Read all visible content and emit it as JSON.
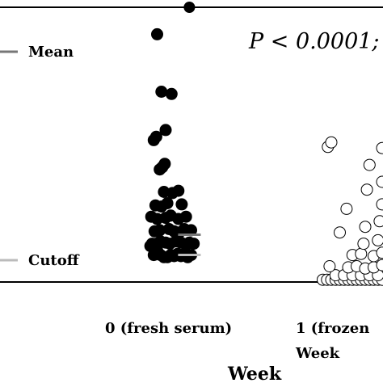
{
  "chart_data": {
    "type": "scatter",
    "annotation": "P < 0.0001;",
    "legend": {
      "placement": "left",
      "mean_label": "Mean",
      "cutoff_label": "Cutoff"
    },
    "categories": [
      "0 (fresh serum)",
      "1 (frozen"
    ],
    "category_sublabels": [
      "",
      "Week"
    ],
    "xlabel": "Week",
    "colors": {
      "fresh": "#000000",
      "frozen": "#ffffff",
      "frame": "#000000",
      "mean": "#777777",
      "cutoff": "#bbbbbb"
    },
    "series": [
      {
        "category_index": 0,
        "fill": "fresh",
        "points": [
          [
            -0.18,
            128
          ],
          [
            -0.14,
            120
          ],
          [
            -0.1,
            124
          ],
          [
            -0.06,
            120
          ],
          [
            -0.02,
            118
          ],
          [
            0.02,
            118
          ],
          [
            0.06,
            120
          ],
          [
            0.1,
            119
          ],
          [
            0.14,
            121
          ],
          [
            0.18,
            119
          ],
          [
            0.22,
            121
          ],
          [
            0.26,
            118
          ],
          [
            0.3,
            120
          ],
          [
            -0.16,
            130
          ],
          [
            -0.11,
            130
          ],
          [
            -0.06,
            132
          ],
          [
            0.0,
            131
          ],
          [
            0.05,
            130
          ],
          [
            0.12,
            132
          ],
          [
            0.18,
            131
          ],
          [
            0.24,
            129
          ],
          [
            0.28,
            131
          ],
          [
            0.33,
            130
          ],
          [
            -0.13,
            141
          ],
          [
            -0.07,
            142
          ],
          [
            0.04,
            143
          ],
          [
            0.1,
            141
          ],
          [
            0.16,
            140
          ],
          [
            0.22,
            143
          ],
          [
            0.3,
            142
          ],
          [
            -0.17,
            154
          ],
          [
            -0.1,
            152
          ],
          [
            0.0,
            153
          ],
          [
            0.06,
            155
          ],
          [
            0.15,
            152
          ],
          [
            0.24,
            154
          ],
          [
            -0.12,
            164
          ],
          [
            -0.05,
            163
          ],
          [
            0.02,
            166
          ],
          [
            0.19,
            165
          ],
          [
            -0.02,
            176
          ],
          [
            0.08,
            175
          ],
          [
            0.15,
            177
          ],
          [
            -0.07,
            196
          ],
          [
            -0.04,
            198
          ],
          [
            -0.01,
            201
          ],
          [
            -0.14,
            222
          ],
          [
            -0.11,
            225
          ],
          [
            0.0,
            231
          ],
          [
            -0.05,
            265
          ],
          [
            0.07,
            263
          ],
          [
            -0.1,
            316
          ]
        ]
      },
      {
        "category_index": 1,
        "fill": "frozen",
        "points": [
          [
            -0.1,
            98
          ],
          [
            -0.05,
            98
          ],
          [
            0.0,
            98
          ],
          [
            0.05,
            98
          ],
          [
            0.1,
            98
          ],
          [
            0.15,
            98
          ],
          [
            0.2,
            98
          ],
          [
            0.25,
            98
          ],
          [
            0.3,
            98
          ],
          [
            0.35,
            98
          ],
          [
            0.4,
            98
          ],
          [
            0.45,
            98
          ],
          [
            0.5,
            98
          ],
          [
            0.55,
            98
          ],
          [
            0.6,
            98
          ],
          [
            0.05,
            102
          ],
          [
            0.15,
            102
          ],
          [
            0.25,
            102
          ],
          [
            0.35,
            102
          ],
          [
            0.45,
            102
          ],
          [
            0.55,
            102
          ],
          [
            -0.02,
            110
          ],
          [
            0.2,
            109
          ],
          [
            0.3,
            110
          ],
          [
            0.4,
            108
          ],
          [
            0.5,
            109
          ],
          [
            0.6,
            111
          ],
          [
            0.25,
            120
          ],
          [
            0.35,
            121
          ],
          [
            0.5,
            119
          ],
          [
            0.6,
            122
          ],
          [
            0.38,
            130
          ],
          [
            0.55,
            133
          ],
          [
            0.1,
            140
          ],
          [
            0.4,
            145
          ],
          [
            0.57,
            150
          ],
          [
            0.18,
            161
          ],
          [
            0.6,
            165
          ],
          [
            0.42,
            178
          ],
          [
            0.6,
            185
          ],
          [
            -0.04,
            216
          ],
          [
            0.45,
            200
          ],
          [
            0.6,
            215
          ],
          [
            0.0,
            220
          ]
        ]
      }
    ],
    "outlier_above_frame": [
      0.28,
      350
    ],
    "mean_markers": [
      {
        "category_index": 0,
        "x_offset": 0.28,
        "value": 138
      }
    ],
    "cutoff_markers": [
      {
        "category_index": 0,
        "x_offset": 0.28,
        "value": 120
      }
    ],
    "yrange": [
      96,
      340
    ]
  }
}
